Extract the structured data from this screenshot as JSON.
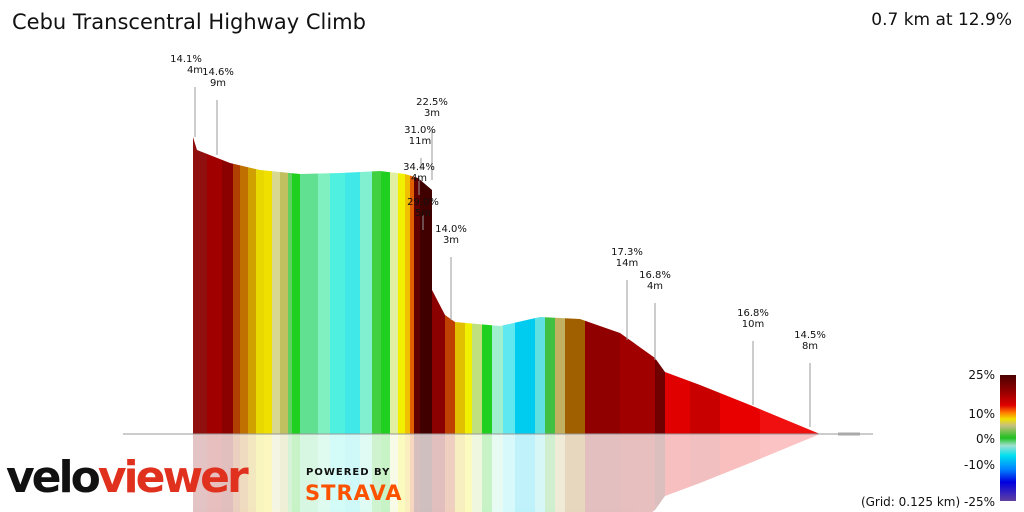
{
  "title": "Cebu Transcentral Highway Climb",
  "summary": "0.7 km at 12.9%",
  "annotations": [
    {
      "pct": "14.1%",
      "len": "4m"
    },
    {
      "pct": "14.6%",
      "len": "9m"
    },
    {
      "pct": "22.5%",
      "len": "3m"
    },
    {
      "pct": "31.0%",
      "len": "11m"
    },
    {
      "pct": "34.4%",
      "len": "4m"
    },
    {
      "pct": "29.0%",
      "len": "5m"
    },
    {
      "pct": "14.0%",
      "len": "3m"
    },
    {
      "pct": "17.3%",
      "len": "14m"
    },
    {
      "pct": "16.8%",
      "len": "4m"
    },
    {
      "pct": "16.8%",
      "len": "10m"
    },
    {
      "pct": "14.5%",
      "len": "8m"
    }
  ],
  "legend": {
    "labels": [
      "25%",
      "10%",
      "0%",
      "-10%",
      "-25%"
    ],
    "grid": "(Grid: 0.125 km)"
  },
  "branding": {
    "logo_a": "velo",
    "logo_b": "viewer",
    "powered": "POWERED BY",
    "strava": "STRAVA"
  },
  "colors": {
    "steep": "#8b0000",
    "flat": "#20d020",
    "descent": "#00d0f0",
    "accent_strava": "#fc5200"
  }
}
